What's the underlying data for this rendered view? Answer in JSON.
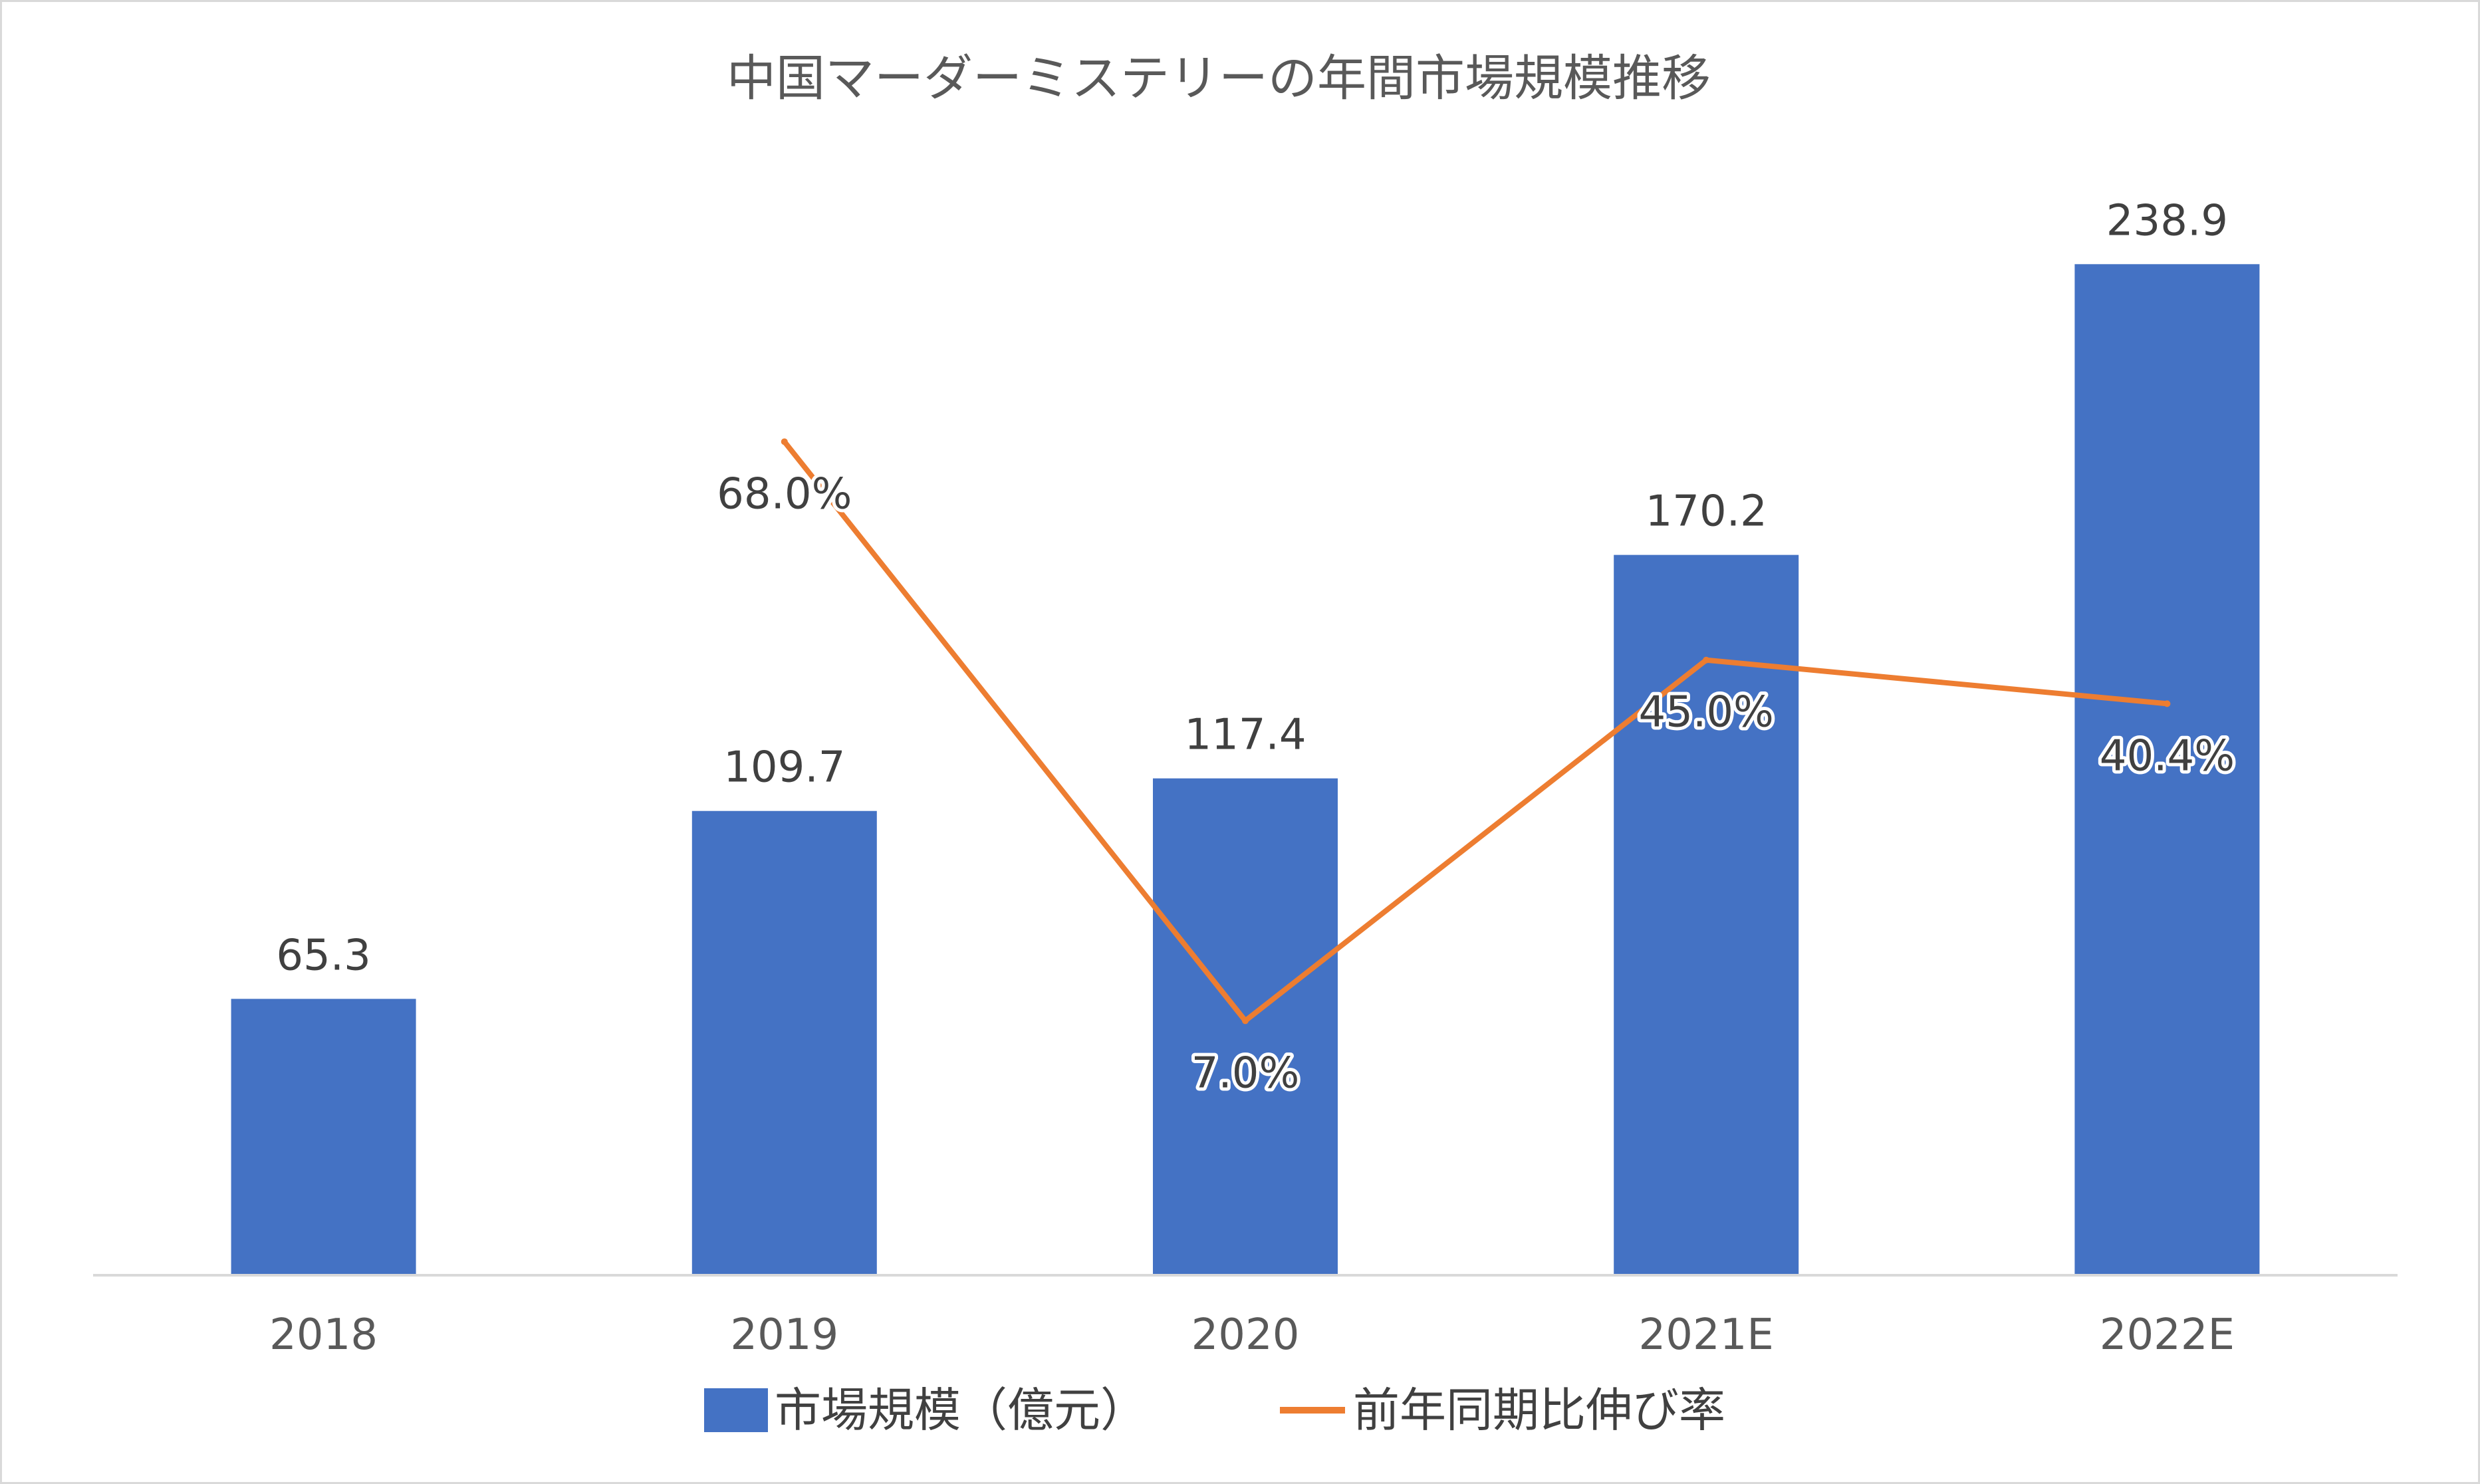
{
  "chart_data": {
    "type": "bar",
    "title": "中国マーダーミステリーの年間市場規模推移",
    "categories": [
      "2018",
      "2019",
      "2020",
      "2021E",
      "2022E"
    ],
    "series": [
      {
        "name": "市場規模（億元）",
        "type": "bar",
        "color": "#4472c4",
        "values": [
          65.3,
          109.7,
          117.4,
          170.2,
          238.9
        ],
        "labels": [
          "65.3",
          "109.7",
          "117.4",
          "170.2",
          "238.9"
        ]
      },
      {
        "name": "前年同期比伸び率",
        "type": "line",
        "color": "#ed7d31",
        "values": [
          null,
          68.0,
          7.0,
          45.0,
          40.4
        ],
        "labels": [
          "",
          "68.0%",
          "7.0%",
          "45.0%",
          "40.4%"
        ]
      }
    ],
    "ylim": [
      0,
      260
    ],
    "y2lim": [
      -10,
      80
    ],
    "grid": false,
    "legend": "bottom"
  }
}
